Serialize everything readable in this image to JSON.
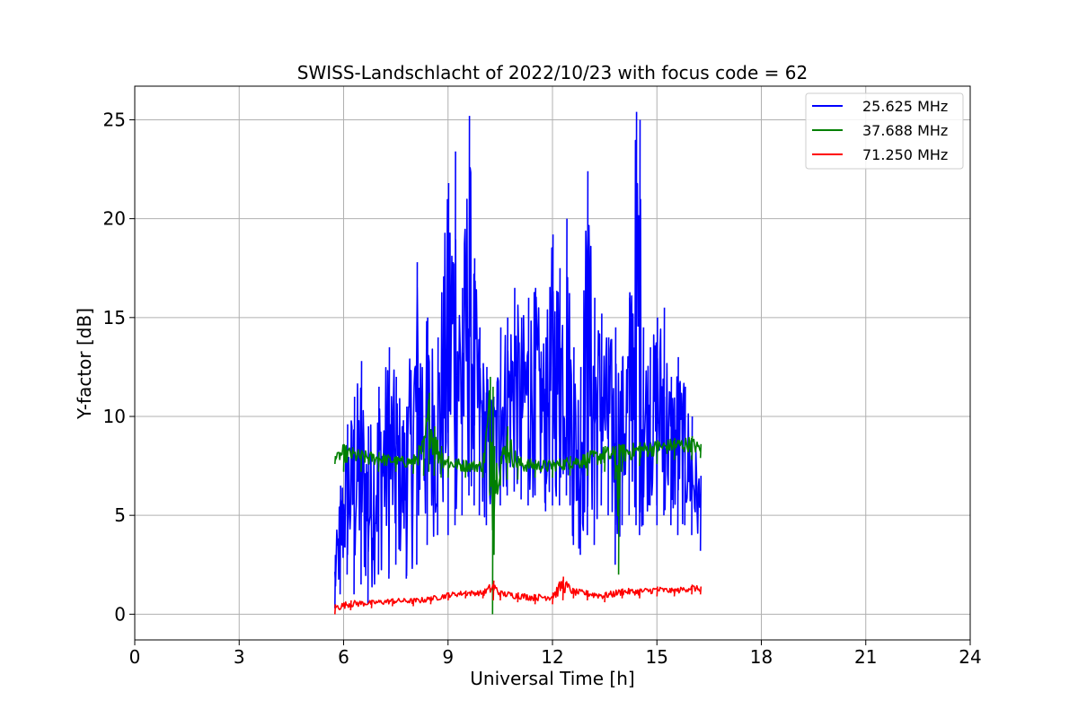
{
  "chart_data": {
    "type": "line",
    "title": "SWISS-Landschlacht of 2022/10/23 with focus code = 62",
    "xlabel": "Universal Time [h]",
    "ylabel": "Y-factor [dB]",
    "xlim": [
      0,
      24
    ],
    "ylim": [
      -1.3,
      26.7
    ],
    "x_ticks": [
      "0",
      "3",
      "6",
      "9",
      "12",
      "15",
      "18",
      "21",
      "24"
    ],
    "y_ticks": [
      "0",
      "5",
      "10",
      "15",
      "20",
      "25"
    ],
    "grid": true,
    "legend_position": "top-right",
    "x_range": [
      5.75,
      16.25
    ],
    "series": [
      {
        "name": "25.625 MHz",
        "color": "#0000ff",
        "envelope": {
          "x": [
            5.75,
            5.9,
            6.1,
            6.3,
            6.5,
            6.7,
            7.0,
            7.3,
            7.5,
            7.8,
            8.1,
            8.4,
            8.7,
            9.0,
            9.2,
            9.4,
            9.6,
            9.75,
            9.9,
            10.1,
            10.3,
            10.5,
            10.7,
            10.9,
            11.1,
            11.3,
            11.5,
            11.8,
            12.0,
            12.2,
            12.4,
            12.6,
            12.8,
            13.0,
            13.2,
            13.4,
            13.6,
            13.8,
            14.0,
            14.2,
            14.4,
            14.5,
            14.6,
            14.8,
            15.0,
            15.2,
            15.4,
            15.6,
            15.8,
            16.0,
            16.25
          ],
          "high": [
            3.0,
            6.5,
            9.6,
            11.0,
            12.8,
            9.5,
            11.5,
            13.5,
            12.0,
            10.5,
            17.8,
            15.0,
            14.0,
            21.8,
            23.4,
            16.5,
            25.2,
            18.0,
            14.5,
            12.5,
            11.0,
            14.5,
            15.0,
            16.5,
            15.0,
            16.0,
            16.5,
            14.0,
            19.2,
            17.5,
            20.0,
            13.5,
            12.5,
            22.4,
            16.0,
            15.2,
            14.0,
            14.5,
            13.0,
            16.0,
            25.4,
            25.0,
            14.5,
            13.5,
            15.0,
            15.5,
            12.0,
            13.0,
            11.5,
            10.0,
            7.0
          ],
          "low": [
            0.3,
            1.0,
            2.0,
            1.0,
            1.5,
            0.5,
            2.0,
            1.8,
            2.5,
            1.8,
            2.5,
            3.5,
            4.0,
            4.0,
            4.5,
            5.0,
            6.0,
            5.5,
            5.0,
            4.5,
            4.5,
            5.5,
            6.0,
            6.2,
            5.8,
            5.5,
            6.0,
            5.2,
            5.5,
            5.5,
            6.0,
            3.5,
            3.0,
            4.0,
            3.5,
            5.5,
            5.0,
            2.5,
            4.5,
            5.0,
            4.5,
            4.0,
            4.5,
            5.5,
            4.5,
            5.0,
            4.5,
            4.0,
            4.5,
            4.0,
            3.2
          ]
        }
      },
      {
        "name": "37.688 MHz",
        "color": "#008000",
        "envelope": {
          "x": [
            5.75,
            6.0,
            6.5,
            7.0,
            7.5,
            8.0,
            8.3,
            8.45,
            8.6,
            8.8,
            9.0,
            9.5,
            10.0,
            10.2,
            10.28,
            10.32,
            10.5,
            10.7,
            11.0,
            11.5,
            12.0,
            12.5,
            13.0,
            13.5,
            13.8,
            13.9,
            14.0,
            14.5,
            15.0,
            15.5,
            16.0,
            16.25
          ],
          "high": [
            8.0,
            8.6,
            8.3,
            8.2,
            8.0,
            8.0,
            9.0,
            11.2,
            9.5,
            8.5,
            8.0,
            7.8,
            7.8,
            12.0,
            11.5,
            8.5,
            8.0,
            9.5,
            8.0,
            7.8,
            7.8,
            8.0,
            8.2,
            8.5,
            8.5,
            8.6,
            8.6,
            8.7,
            8.8,
            8.9,
            9.0,
            8.6
          ],
          "low": [
            7.6,
            7.2,
            7.2,
            7.2,
            7.2,
            7.1,
            7.0,
            7.2,
            7.0,
            6.9,
            6.9,
            6.9,
            6.9,
            6.0,
            0.0,
            3.0,
            6.5,
            6.8,
            6.8,
            6.9,
            6.9,
            7.0,
            7.0,
            7.2,
            6.8,
            2.0,
            7.2,
            7.5,
            7.6,
            7.8,
            7.8,
            7.9
          ]
        }
      },
      {
        "name": "71.250 MHz",
        "color": "#ff0000",
        "envelope": {
          "x": [
            5.75,
            6.2,
            6.8,
            7.4,
            8.0,
            8.5,
            9.0,
            9.5,
            10.0,
            10.3,
            10.5,
            11.0,
            11.5,
            12.0,
            12.3,
            12.6,
            13.0,
            13.5,
            14.0,
            14.5,
            15.0,
            15.5,
            16.0,
            16.25
          ],
          "high": [
            0.5,
            0.7,
            0.7,
            0.8,
            0.8,
            0.9,
            1.1,
            1.2,
            1.2,
            1.7,
            1.2,
            1.1,
            1.0,
            1.1,
            1.9,
            1.3,
            1.2,
            1.1,
            1.3,
            1.3,
            1.4,
            1.3,
            1.5,
            1.4
          ],
          "low": [
            0.0,
            0.2,
            0.3,
            0.4,
            0.4,
            0.5,
            0.7,
            0.8,
            0.8,
            0.7,
            0.7,
            0.6,
            0.5,
            0.5,
            0.7,
            0.8,
            0.7,
            0.6,
            0.8,
            0.8,
            0.9,
            0.9,
            1.0,
            1.0
          ]
        }
      }
    ]
  }
}
